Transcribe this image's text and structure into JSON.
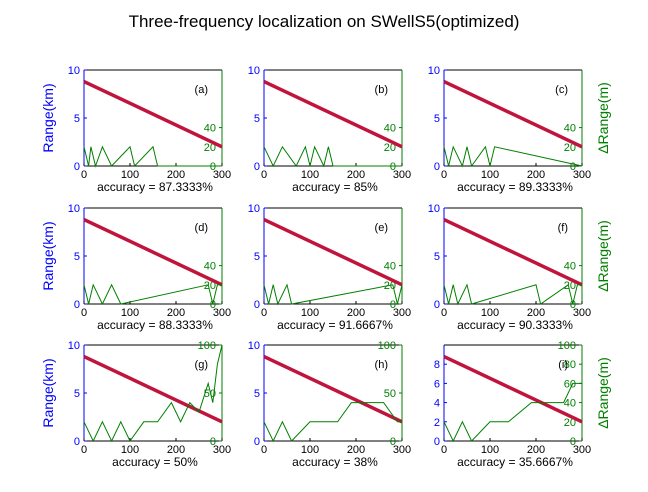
{
  "figure": {
    "title": "Three-frequency localization on SWellS5(optimized)",
    "left_ylabel": "Range(km)",
    "right_ylabel": "ΔRange(m)"
  },
  "chart_data": [
    {
      "type": "line",
      "panel": "(a)",
      "title": "",
      "xlabel": "accuracy = 87.3333%",
      "ylabel": "Range(km)",
      "xlim": [
        0,
        300
      ],
      "xticks": [
        0,
        100,
        200,
        300
      ],
      "ylim": [
        0,
        10
      ],
      "yticks": [
        0,
        5,
        10
      ],
      "ylim_right": [
        0,
        100
      ],
      "yticks_right": [
        0,
        20,
        40
      ],
      "series": [
        {
          "axis": "left",
          "color": "#c0143c",
          "style": "estimated range track",
          "x": [
            0,
            300
          ],
          "y": [
            8.8,
            2.0
          ]
        },
        {
          "axis": "right",
          "color": "#007f00",
          "style": "range error",
          "x": [
            0,
            10,
            15,
            25,
            40,
            60,
            100,
            110,
            150,
            160,
            300
          ],
          "y": [
            20,
            0,
            20,
            0,
            20,
            0,
            20,
            0,
            20,
            0,
            0
          ]
        }
      ]
    },
    {
      "type": "line",
      "panel": "(b)",
      "title": "",
      "xlabel": "accuracy = 85%",
      "ylabel": "",
      "xlim": [
        0,
        300
      ],
      "xticks": [
        0,
        100,
        200,
        300
      ],
      "ylim": [
        0,
        10
      ],
      "yticks": [
        0,
        5,
        10
      ],
      "ylim_right": [
        0,
        100
      ],
      "yticks_right": [
        0,
        20,
        40
      ],
      "series": [
        {
          "axis": "left",
          "color": "#c0143c",
          "style": "estimated range track",
          "x": [
            0,
            300
          ],
          "y": [
            8.8,
            2.0
          ]
        },
        {
          "axis": "right",
          "color": "#007f00",
          "style": "range error",
          "x": [
            0,
            20,
            40,
            70,
            90,
            100,
            110,
            130,
            140,
            150,
            300
          ],
          "y": [
            20,
            0,
            20,
            0,
            20,
            0,
            20,
            0,
            20,
            0,
            0
          ]
        }
      ]
    },
    {
      "type": "line",
      "panel": "(c)",
      "title": "",
      "xlabel": "accuracy = 89.3333%",
      "ylabel": "",
      "xlim": [
        0,
        300
      ],
      "xticks": [
        0,
        100,
        200,
        300
      ],
      "ylim": [
        0,
        10
      ],
      "yticks": [
        0,
        5,
        10
      ],
      "ylim_right": [
        0,
        100
      ],
      "yticks_right": [
        0,
        20,
        40
      ],
      "ylabel_right": "ΔRange(m)",
      "series": [
        {
          "axis": "left",
          "color": "#c0143c",
          "style": "estimated range track",
          "x": [
            0,
            300
          ],
          "y": [
            8.8,
            2.0
          ]
        },
        {
          "axis": "right",
          "color": "#007f00",
          "style": "range error",
          "x": [
            0,
            10,
            20,
            40,
            50,
            60,
            90,
            100,
            110,
            300
          ],
          "y": [
            20,
            0,
            20,
            0,
            20,
            0,
            20,
            0,
            20,
            0
          ]
        }
      ]
    },
    {
      "type": "line",
      "panel": "(d)",
      "title": "",
      "xlabel": "accuracy = 88.3333%",
      "ylabel": "Range(km)",
      "xlim": [
        0,
        300
      ],
      "xticks": [
        0,
        100,
        200,
        300
      ],
      "ylim": [
        0,
        10
      ],
      "yticks": [
        0,
        5,
        10
      ],
      "ylim_right": [
        0,
        100
      ],
      "yticks_right": [
        0,
        20,
        40
      ],
      "series": [
        {
          "axis": "left",
          "color": "#c0143c",
          "style": "estimated range track",
          "x": [
            0,
            300
          ],
          "y": [
            8.8,
            2.0
          ]
        },
        {
          "axis": "right",
          "color": "#007f00",
          "style": "range error",
          "x": [
            0,
            10,
            20,
            40,
            60,
            80,
            270,
            280,
            290,
            300
          ],
          "y": [
            20,
            0,
            20,
            0,
            20,
            0,
            20,
            0,
            20,
            20
          ]
        }
      ]
    },
    {
      "type": "line",
      "panel": "(e)",
      "title": "",
      "xlabel": "accuracy = 91.6667%",
      "ylabel": "",
      "xlim": [
        0,
        300
      ],
      "xticks": [
        0,
        100,
        200,
        300
      ],
      "ylim": [
        0,
        10
      ],
      "yticks": [
        0,
        5,
        10
      ],
      "ylim_right": [
        0,
        100
      ],
      "yticks_right": [
        0,
        20,
        40
      ],
      "series": [
        {
          "axis": "left",
          "color": "#c0143c",
          "style": "estimated range track",
          "x": [
            0,
            300
          ],
          "y": [
            8.8,
            2.0
          ]
        },
        {
          "axis": "right",
          "color": "#007f00",
          "style": "range error",
          "x": [
            0,
            10,
            20,
            30,
            50,
            60,
            280,
            290,
            300
          ],
          "y": [
            20,
            0,
            20,
            0,
            20,
            0,
            20,
            0,
            20
          ]
        }
      ]
    },
    {
      "type": "line",
      "panel": "(f)",
      "title": "",
      "xlabel": "accuracy = 90.3333%",
      "ylabel": "",
      "xlim": [
        0,
        300
      ],
      "xticks": [
        0,
        100,
        200,
        300
      ],
      "ylim": [
        0,
        10
      ],
      "yticks": [
        0,
        5,
        10
      ],
      "ylim_right": [
        0,
        100
      ],
      "yticks_right": [
        0,
        20,
        40
      ],
      "ylabel_right": "ΔRange(m)",
      "series": [
        {
          "axis": "left",
          "color": "#c0143c",
          "style": "estimated range track",
          "x": [
            0,
            300
          ],
          "y": [
            8.8,
            2.0
          ]
        },
        {
          "axis": "right",
          "color": "#007f00",
          "style": "range error",
          "x": [
            0,
            10,
            20,
            30,
            50,
            60,
            200,
            210,
            270,
            280,
            290,
            300
          ],
          "y": [
            20,
            0,
            20,
            0,
            20,
            0,
            20,
            0,
            20,
            0,
            20,
            20
          ]
        }
      ]
    },
    {
      "type": "line",
      "panel": "(g)",
      "title": "",
      "xlabel": "accuracy = 50%",
      "ylabel": "Range(km)",
      "xlim": [
        0,
        300
      ],
      "xticks": [
        0,
        100,
        200,
        300
      ],
      "ylim": [
        0,
        10
      ],
      "yticks": [
        0,
        5,
        10
      ],
      "ylim_right": [
        0,
        100
      ],
      "yticks_right": [
        0,
        50,
        100
      ],
      "series": [
        {
          "axis": "left",
          "color": "#c0143c",
          "style": "estimated range track",
          "x": [
            0,
            300
          ],
          "y": [
            8.8,
            2.0
          ]
        },
        {
          "axis": "right",
          "color": "#007f00",
          "style": "range error",
          "x": [
            0,
            20,
            40,
            60,
            80,
            100,
            130,
            160,
            190,
            210,
            230,
            250,
            270,
            280,
            290,
            300
          ],
          "y": [
            20,
            0,
            20,
            0,
            20,
            0,
            20,
            20,
            40,
            20,
            40,
            30,
            60,
            40,
            80,
            100
          ]
        }
      ]
    },
    {
      "type": "line",
      "panel": "(h)",
      "title": "",
      "xlabel": "accuracy = 38%",
      "ylabel": "",
      "xlim": [
        0,
        300
      ],
      "xticks": [
        0,
        100,
        200,
        300
      ],
      "ylim": [
        0,
        10
      ],
      "yticks": [
        0,
        5,
        10
      ],
      "ylim_right": [
        0,
        100
      ],
      "yticks_right": [
        0,
        50,
        100
      ],
      "series": [
        {
          "axis": "left",
          "color": "#c0143c",
          "style": "estimated range track",
          "x": [
            0,
            300
          ],
          "y": [
            8.8,
            2.0
          ]
        },
        {
          "axis": "right",
          "color": "#007f00",
          "style": "range error",
          "x": [
            0,
            20,
            40,
            60,
            100,
            130,
            160,
            190,
            220,
            260,
            290,
            300
          ],
          "y": [
            20,
            0,
            20,
            0,
            20,
            20,
            20,
            40,
            40,
            40,
            20,
            20
          ]
        }
      ]
    },
    {
      "type": "line",
      "panel": "(i)",
      "title": "",
      "xlabel": "accuracy = 35.6667%",
      "ylabel": "",
      "xlim": [
        0,
        300
      ],
      "xticks": [
        0,
        100,
        200,
        300
      ],
      "ylim": [
        0,
        10
      ],
      "yticks": [
        0,
        2,
        4,
        6,
        8
      ],
      "ylim_right": [
        0,
        100
      ],
      "yticks_right": [
        0,
        20,
        40,
        60,
        80,
        100
      ],
      "ylabel_right": "ΔRange(m)",
      "series": [
        {
          "axis": "left",
          "color": "#c0143c",
          "style": "estimated range track",
          "x": [
            0,
            300
          ],
          "y": [
            8.8,
            2.0
          ]
        },
        {
          "axis": "right",
          "color": "#007f00",
          "style": "range error",
          "x": [
            0,
            20,
            40,
            60,
            100,
            140,
            190,
            220,
            260,
            280,
            300
          ],
          "y": [
            20,
            0,
            20,
            0,
            20,
            20,
            40,
            40,
            40,
            60,
            60
          ]
        }
      ]
    }
  ]
}
